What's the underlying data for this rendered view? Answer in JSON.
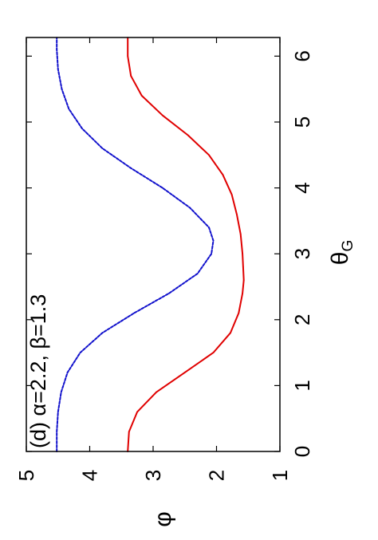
{
  "chart_data": {
    "type": "line",
    "title": "(d) α=2.2, β=1.3",
    "xlabel": "θG",
    "xlabel_main": "θ",
    "xlabel_sub": "G",
    "ylabel": "φ",
    "xlim": [
      0,
      6.283
    ],
    "ylim": [
      1,
      5
    ],
    "xticks": [
      0,
      1,
      2,
      3,
      4,
      5,
      6
    ],
    "yticks": [
      1,
      2,
      3,
      4,
      5
    ],
    "grid": false,
    "orientation": "rotated 90° counter-clockwise",
    "series": [
      {
        "color": "#e00000",
        "style": "solid",
        "x": [
          0,
          0.3,
          0.6,
          0.9,
          1.2,
          1.5,
          1.8,
          2.1,
          2.4,
          2.6,
          2.8,
          3.0,
          3.3,
          3.6,
          3.9,
          4.2,
          4.5,
          4.8,
          5.1,
          5.4,
          5.7,
          6.0,
          6.28
        ],
        "values": [
          3.4,
          3.38,
          3.25,
          2.95,
          2.5,
          2.05,
          1.78,
          1.65,
          1.59,
          1.57,
          1.58,
          1.59,
          1.62,
          1.68,
          1.76,
          1.9,
          2.12,
          2.45,
          2.85,
          3.18,
          3.35,
          3.4,
          3.4
        ]
      },
      {
        "color": "#1010cc",
        "style": "dashed",
        "x": [
          0,
          0.3,
          0.6,
          0.9,
          1.2,
          1.5,
          1.8,
          2.1,
          2.4,
          2.7,
          3.0,
          3.2,
          3.4,
          3.7,
          4.0,
          4.3,
          4.6,
          4.9,
          5.2,
          5.5,
          5.8,
          6.1,
          6.28
        ],
        "values": [
          4.52,
          4.52,
          4.5,
          4.45,
          4.35,
          4.15,
          3.8,
          3.3,
          2.75,
          2.3,
          2.08,
          2.05,
          2.12,
          2.42,
          2.85,
          3.35,
          3.8,
          4.12,
          4.33,
          4.44,
          4.5,
          4.52,
          4.52
        ]
      }
    ]
  }
}
